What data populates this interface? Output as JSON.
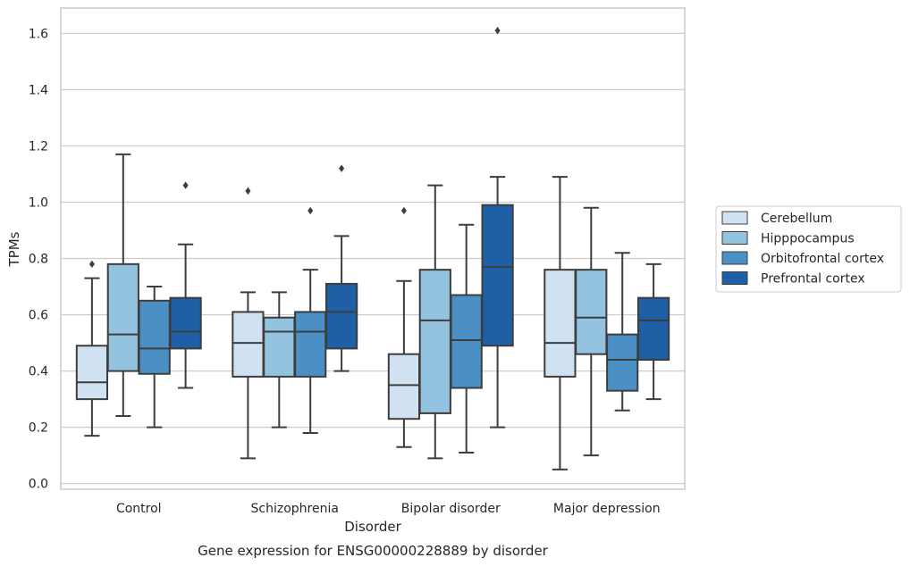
{
  "chart_data": {
    "type": "box",
    "title": "",
    "caption": "Gene expression for ENSG00000228889 by disorder",
    "xlabel": "Disorder",
    "ylabel": "TPMs",
    "ylim": [
      -0.02,
      1.69
    ],
    "yticks": [
      "0.0",
      "0.2",
      "0.4",
      "0.6",
      "0.8",
      "1.0",
      "1.2",
      "1.4",
      "1.6"
    ],
    "grid": "horizontal",
    "legend_position": "right",
    "categories": [
      "Control",
      "Schizophrenia",
      "Bipolar disorder",
      "Major depression"
    ],
    "series": [
      {
        "name": "Cerebellum",
        "color": "#d0e2f2",
        "boxes": [
          {
            "min": 0.17,
            "q1": 0.3,
            "median": 0.36,
            "q3": 0.49,
            "max": 0.73,
            "outliers": [
              0.78
            ]
          },
          {
            "min": 0.09,
            "q1": 0.38,
            "median": 0.5,
            "q3": 0.61,
            "max": 0.68,
            "outliers": [
              1.04
            ]
          },
          {
            "min": 0.13,
            "q1": 0.23,
            "median": 0.35,
            "q3": 0.46,
            "max": 0.72,
            "outliers": [
              0.97
            ]
          },
          {
            "min": 0.05,
            "q1": 0.38,
            "median": 0.5,
            "q3": 0.76,
            "max": 1.09,
            "outliers": []
          }
        ]
      },
      {
        "name": "Hipppocampus",
        "color": "#93c3df",
        "boxes": [
          {
            "min": 0.24,
            "q1": 0.4,
            "median": 0.53,
            "q3": 0.78,
            "max": 1.17,
            "outliers": []
          },
          {
            "min": 0.2,
            "q1": 0.38,
            "median": 0.54,
            "q3": 0.59,
            "max": 0.68,
            "outliers": []
          },
          {
            "min": 0.09,
            "q1": 0.25,
            "median": 0.58,
            "q3": 0.76,
            "max": 1.06,
            "outliers": []
          },
          {
            "min": 0.1,
            "q1": 0.46,
            "median": 0.59,
            "q3": 0.76,
            "max": 0.98,
            "outliers": []
          }
        ]
      },
      {
        "name": "Orbitofrontal cortex",
        "color": "#4a90c4",
        "boxes": [
          {
            "min": 0.2,
            "q1": 0.39,
            "median": 0.48,
            "q3": 0.65,
            "max": 0.7,
            "outliers": []
          },
          {
            "min": 0.18,
            "q1": 0.38,
            "median": 0.54,
            "q3": 0.61,
            "max": 0.76,
            "outliers": [
              0.97
            ]
          },
          {
            "min": 0.11,
            "q1": 0.34,
            "median": 0.51,
            "q3": 0.67,
            "max": 0.92,
            "outliers": []
          },
          {
            "min": 0.26,
            "q1": 0.33,
            "median": 0.44,
            "q3": 0.53,
            "max": 0.82,
            "outliers": []
          }
        ]
      },
      {
        "name": "Prefrontal cortex",
        "color": "#1f5fa6",
        "boxes": [
          {
            "min": 0.34,
            "q1": 0.48,
            "median": 0.54,
            "q3": 0.66,
            "max": 0.85,
            "outliers": [
              1.06
            ]
          },
          {
            "min": 0.4,
            "q1": 0.48,
            "median": 0.61,
            "q3": 0.71,
            "max": 0.88,
            "outliers": [
              1.12
            ]
          },
          {
            "min": 0.2,
            "q1": 0.49,
            "median": 0.77,
            "q3": 0.99,
            "max": 1.09,
            "outliers": [
              1.61
            ]
          },
          {
            "min": 0.3,
            "q1": 0.44,
            "median": 0.58,
            "q3": 0.66,
            "max": 0.78,
            "outliers": []
          }
        ]
      }
    ]
  }
}
